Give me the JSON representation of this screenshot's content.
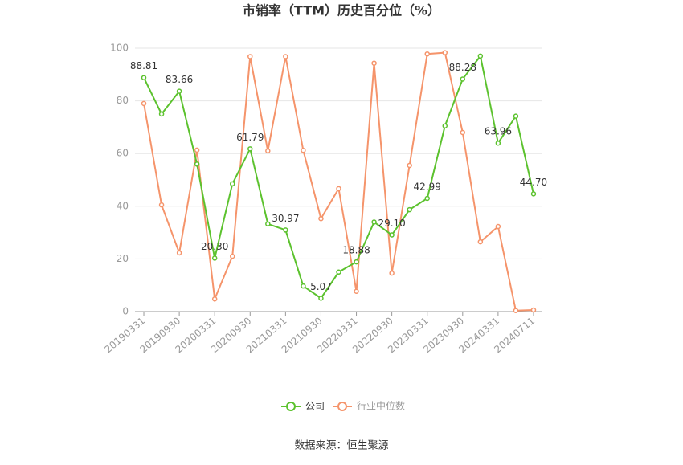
{
  "chart_data": {
    "type": "line",
    "title": "市销率（TTM）历史百分位（%）",
    "source": "数据来源：恒生聚源",
    "categories": [
      "20190331",
      null,
      "20190930",
      null,
      "20200331",
      null,
      "20200930",
      null,
      "20210331",
      null,
      "20210930",
      null,
      "20220331",
      null,
      "20220930",
      null,
      "20230331",
      null,
      "20230930",
      null,
      "20240331",
      null,
      "20240711"
    ],
    "series": [
      {
        "name": "公司",
        "color": "#5cc22e",
        "values": [
          88.81,
          75,
          83.66,
          56,
          20.3,
          48.5,
          61.79,
          33.3,
          30.97,
          9.7,
          5.07,
          15,
          18.88,
          34,
          29.1,
          38.7,
          42.99,
          70.5,
          88.28,
          97,
          63.96,
          74.2,
          44.7
        ],
        "value_labels": [
          "88.81",
          null,
          "83.66",
          null,
          "20.30",
          null,
          "61.79",
          null,
          "30.97",
          null,
          "5.07",
          null,
          "18.88",
          null,
          "29.10",
          null,
          "42.99",
          null,
          "88.28",
          null,
          "63.96",
          null,
          "44.70"
        ]
      },
      {
        "name": "行业中位数",
        "color": "#f5946b",
        "values": [
          79,
          40.5,
          22.3,
          61.3,
          4.8,
          21,
          96.8,
          61,
          96.8,
          61.2,
          35.3,
          46.7,
          7.7,
          94.3,
          14.6,
          55.5,
          97.8,
          98.3,
          68,
          26.5,
          32.3,
          0.4,
          0.6
        ]
      }
    ],
    "ylim": [
      0,
      100
    ],
    "yticks": [
      0,
      20,
      40,
      60,
      80,
      100
    ],
    "grid": true,
    "legend": "bottom"
  }
}
